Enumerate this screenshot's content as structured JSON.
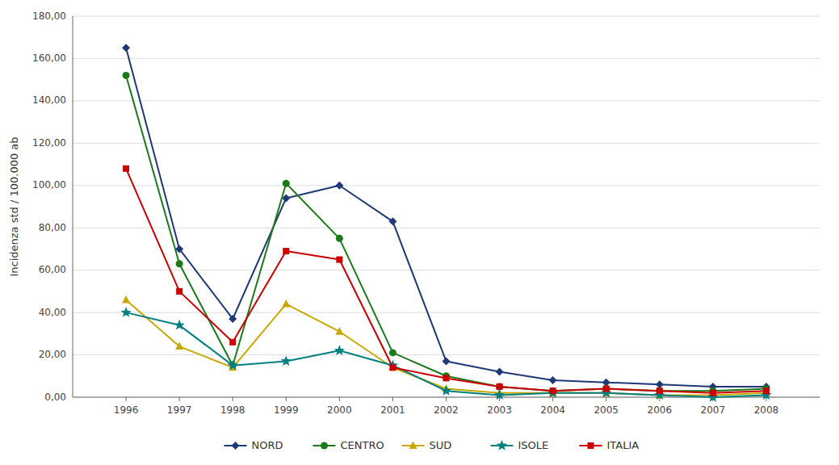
{
  "chart_data": {
    "type": "line",
    "y_label": "Incidenza std / 100.000 ab",
    "x": [
      1996,
      1997,
      1998,
      1999,
      2000,
      2001,
      2002,
      2003,
      2004,
      2005,
      2006,
      2007,
      2008
    ],
    "xlim": [
      1995,
      2009
    ],
    "xticks": [
      1996,
      1997,
      1998,
      1999,
      2000,
      2001,
      2002,
      2003,
      2004,
      2005,
      2006,
      2007,
      2008
    ],
    "ylim": [
      0,
      180
    ],
    "yticks": [
      {
        "value": 0,
        "label": "0,00"
      },
      {
        "value": 20,
        "label": "20,00"
      },
      {
        "value": 40,
        "label": "40,00"
      },
      {
        "value": 60,
        "label": "60,00"
      },
      {
        "value": 80,
        "label": "80,00"
      },
      {
        "value": 100,
        "label": "100,00"
      },
      {
        "value": 120,
        "label": "120,00"
      },
      {
        "value": 140,
        "label": "140,00"
      },
      {
        "value": 160,
        "label": "160,00"
      },
      {
        "value": 180,
        "label": "180,00"
      }
    ],
    "grid": true,
    "legend": "bottom",
    "series": [
      {
        "name": "NORD",
        "color": "#1F3876",
        "marker": "diamond",
        "values": [
          165,
          70,
          37,
          94,
          100,
          83,
          17,
          12,
          8,
          7,
          6,
          5,
          5
        ]
      },
      {
        "name": "CENTRO",
        "color": "#1a7a1a",
        "marker": "circle",
        "values": [
          152,
          63,
          15,
          101,
          75,
          21,
          10,
          5,
          3,
          4,
          3,
          3,
          4
        ]
      },
      {
        "name": "SUD",
        "color": "#C8A800",
        "marker": "triangle",
        "values": [
          46,
          24,
          14,
          44,
          31,
          14,
          4,
          2,
          2,
          2,
          1,
          1,
          2
        ]
      },
      {
        "name": "ISOLE",
        "color": "#008080",
        "marker": "star",
        "values": [
          40,
          34,
          15,
          17,
          22,
          15,
          3,
          1,
          2,
          2,
          1,
          0,
          1
        ]
      },
      {
        "name": "ITALIA",
        "color": "#CC0000",
        "marker": "square",
        "values": [
          108,
          50,
          26,
          69,
          65,
          14,
          9,
          5,
          3,
          4,
          3,
          2,
          3
        ]
      }
    ]
  }
}
